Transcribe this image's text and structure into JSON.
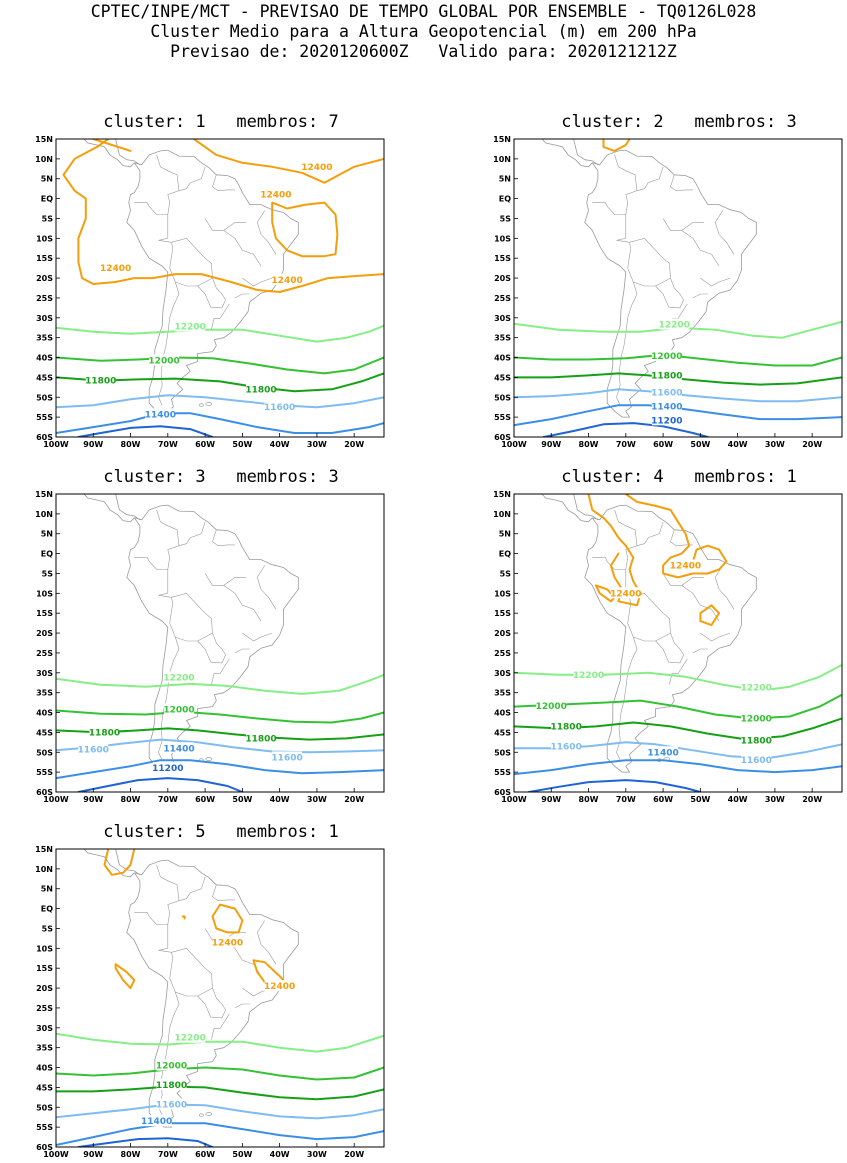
{
  "header": {
    "line1": "CPTEC/INPE/MCT - PREVISAO DE TEMPO GLOBAL POR ENSEMBLE - TQ0126L028",
    "line2": "Cluster Medio para a Altura Geopotencial (m) em 200 hPa",
    "line3": "Previsao de: 2020120600Z   Valido para: 2020121212Z"
  },
  "axes": {
    "lat_labels": [
      "15N",
      "10N",
      "5N",
      "EQ",
      "5S",
      "10S",
      "15S",
      "20S",
      "25S",
      "30S",
      "35S",
      "40S",
      "45S",
      "50S",
      "55S",
      "60S"
    ],
    "lon_labels": [
      "100W",
      "90W",
      "80W",
      "70W",
      "60W",
      "50W",
      "40W",
      "30W",
      "20W"
    ]
  },
  "colors": {
    "c12400": "#f59e0b",
    "c12200": "#86ee86",
    "c12000": "#34c234",
    "c11800": "#15a015",
    "c11600": "#7fbcf2",
    "c11400": "#3b8ee6",
    "c11200": "#1e64d2",
    "coast": "#9a9a9a"
  },
  "panels": [
    {
      "title": "cluster: 1   membros: 7",
      "labels": [
        "12400",
        "12400",
        "12400",
        "12400",
        "12200",
        "12000",
        "11800",
        "11800",
        "11600",
        "11400"
      ]
    },
    {
      "title": "cluster: 2   membros: 3",
      "labels": [
        "12200",
        "12000",
        "11800",
        "11600",
        "11400",
        "11200"
      ]
    },
    {
      "title": "cluster: 3   membros: 3",
      "labels": [
        "12200",
        "12000",
        "11800",
        "11800",
        "11600",
        "11400",
        "11600",
        "11200"
      ]
    },
    {
      "title": "cluster: 4   membros: 1",
      "labels": [
        "12400",
        "12400",
        "12200",
        "12200",
        "12000",
        "12000",
        "11800",
        "11800",
        "11600",
        "11600",
        "11400"
      ]
    },
    {
      "title": "cluster: 5   membros: 1",
      "labels": [
        "12400",
        "12400",
        "12200",
        "12000",
        "11800",
        "11600",
        "11400"
      ]
    }
  ]
}
